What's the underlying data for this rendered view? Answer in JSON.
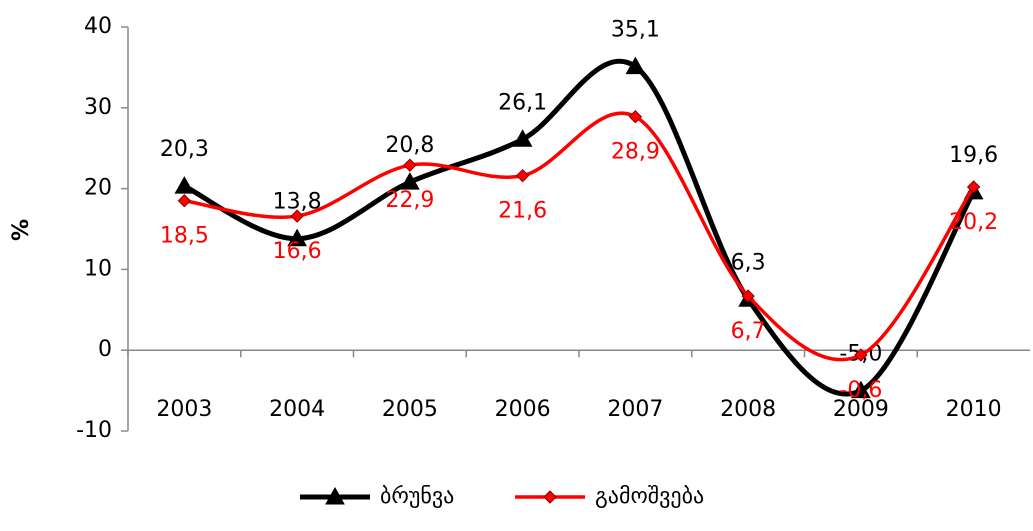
{
  "chart_data": {
    "type": "line",
    "categories": [
      "2003",
      "2004",
      "2005",
      "2006",
      "2007",
      "2008",
      "2009",
      "2010"
    ],
    "series": [
      {
        "name": "ბრუნვა",
        "color": "#000000",
        "marker": "triangle",
        "values": [
          20.3,
          13.8,
          20.8,
          26.1,
          35.1,
          6.3,
          -5.0,
          19.6
        ],
        "value_labels": [
          "20,3",
          "13,8",
          "20,8",
          "26,1",
          "35,1",
          "6,3",
          "-5,0",
          "19,6"
        ]
      },
      {
        "name": "გამოშვება",
        "color": "#ff0000",
        "marker": "diamond",
        "values": [
          18.5,
          16.6,
          22.9,
          21.6,
          28.9,
          6.7,
          -0.6,
          20.2
        ],
        "value_labels": [
          "18,5",
          "16,6",
          "22,9",
          "21,6",
          "28,9",
          "6,7",
          "-0,6",
          "20,2"
        ]
      }
    ],
    "y_label": "%",
    "ylim": [
      -10,
      40
    ],
    "yticks": [
      -10,
      0,
      10,
      20,
      30,
      40
    ],
    "grid": false,
    "legend": "bottom"
  }
}
